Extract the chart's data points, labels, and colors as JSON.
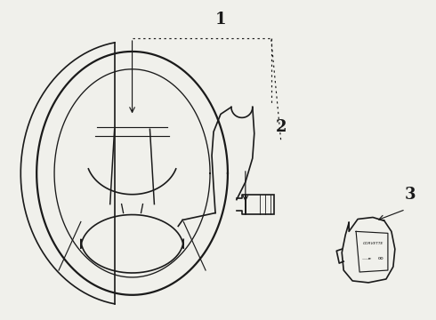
{
  "bg_color": "#f0f0eb",
  "line_color": "#1a1a1a",
  "label1": "1",
  "label2": "2",
  "label3": "3",
  "lw": 1.2
}
